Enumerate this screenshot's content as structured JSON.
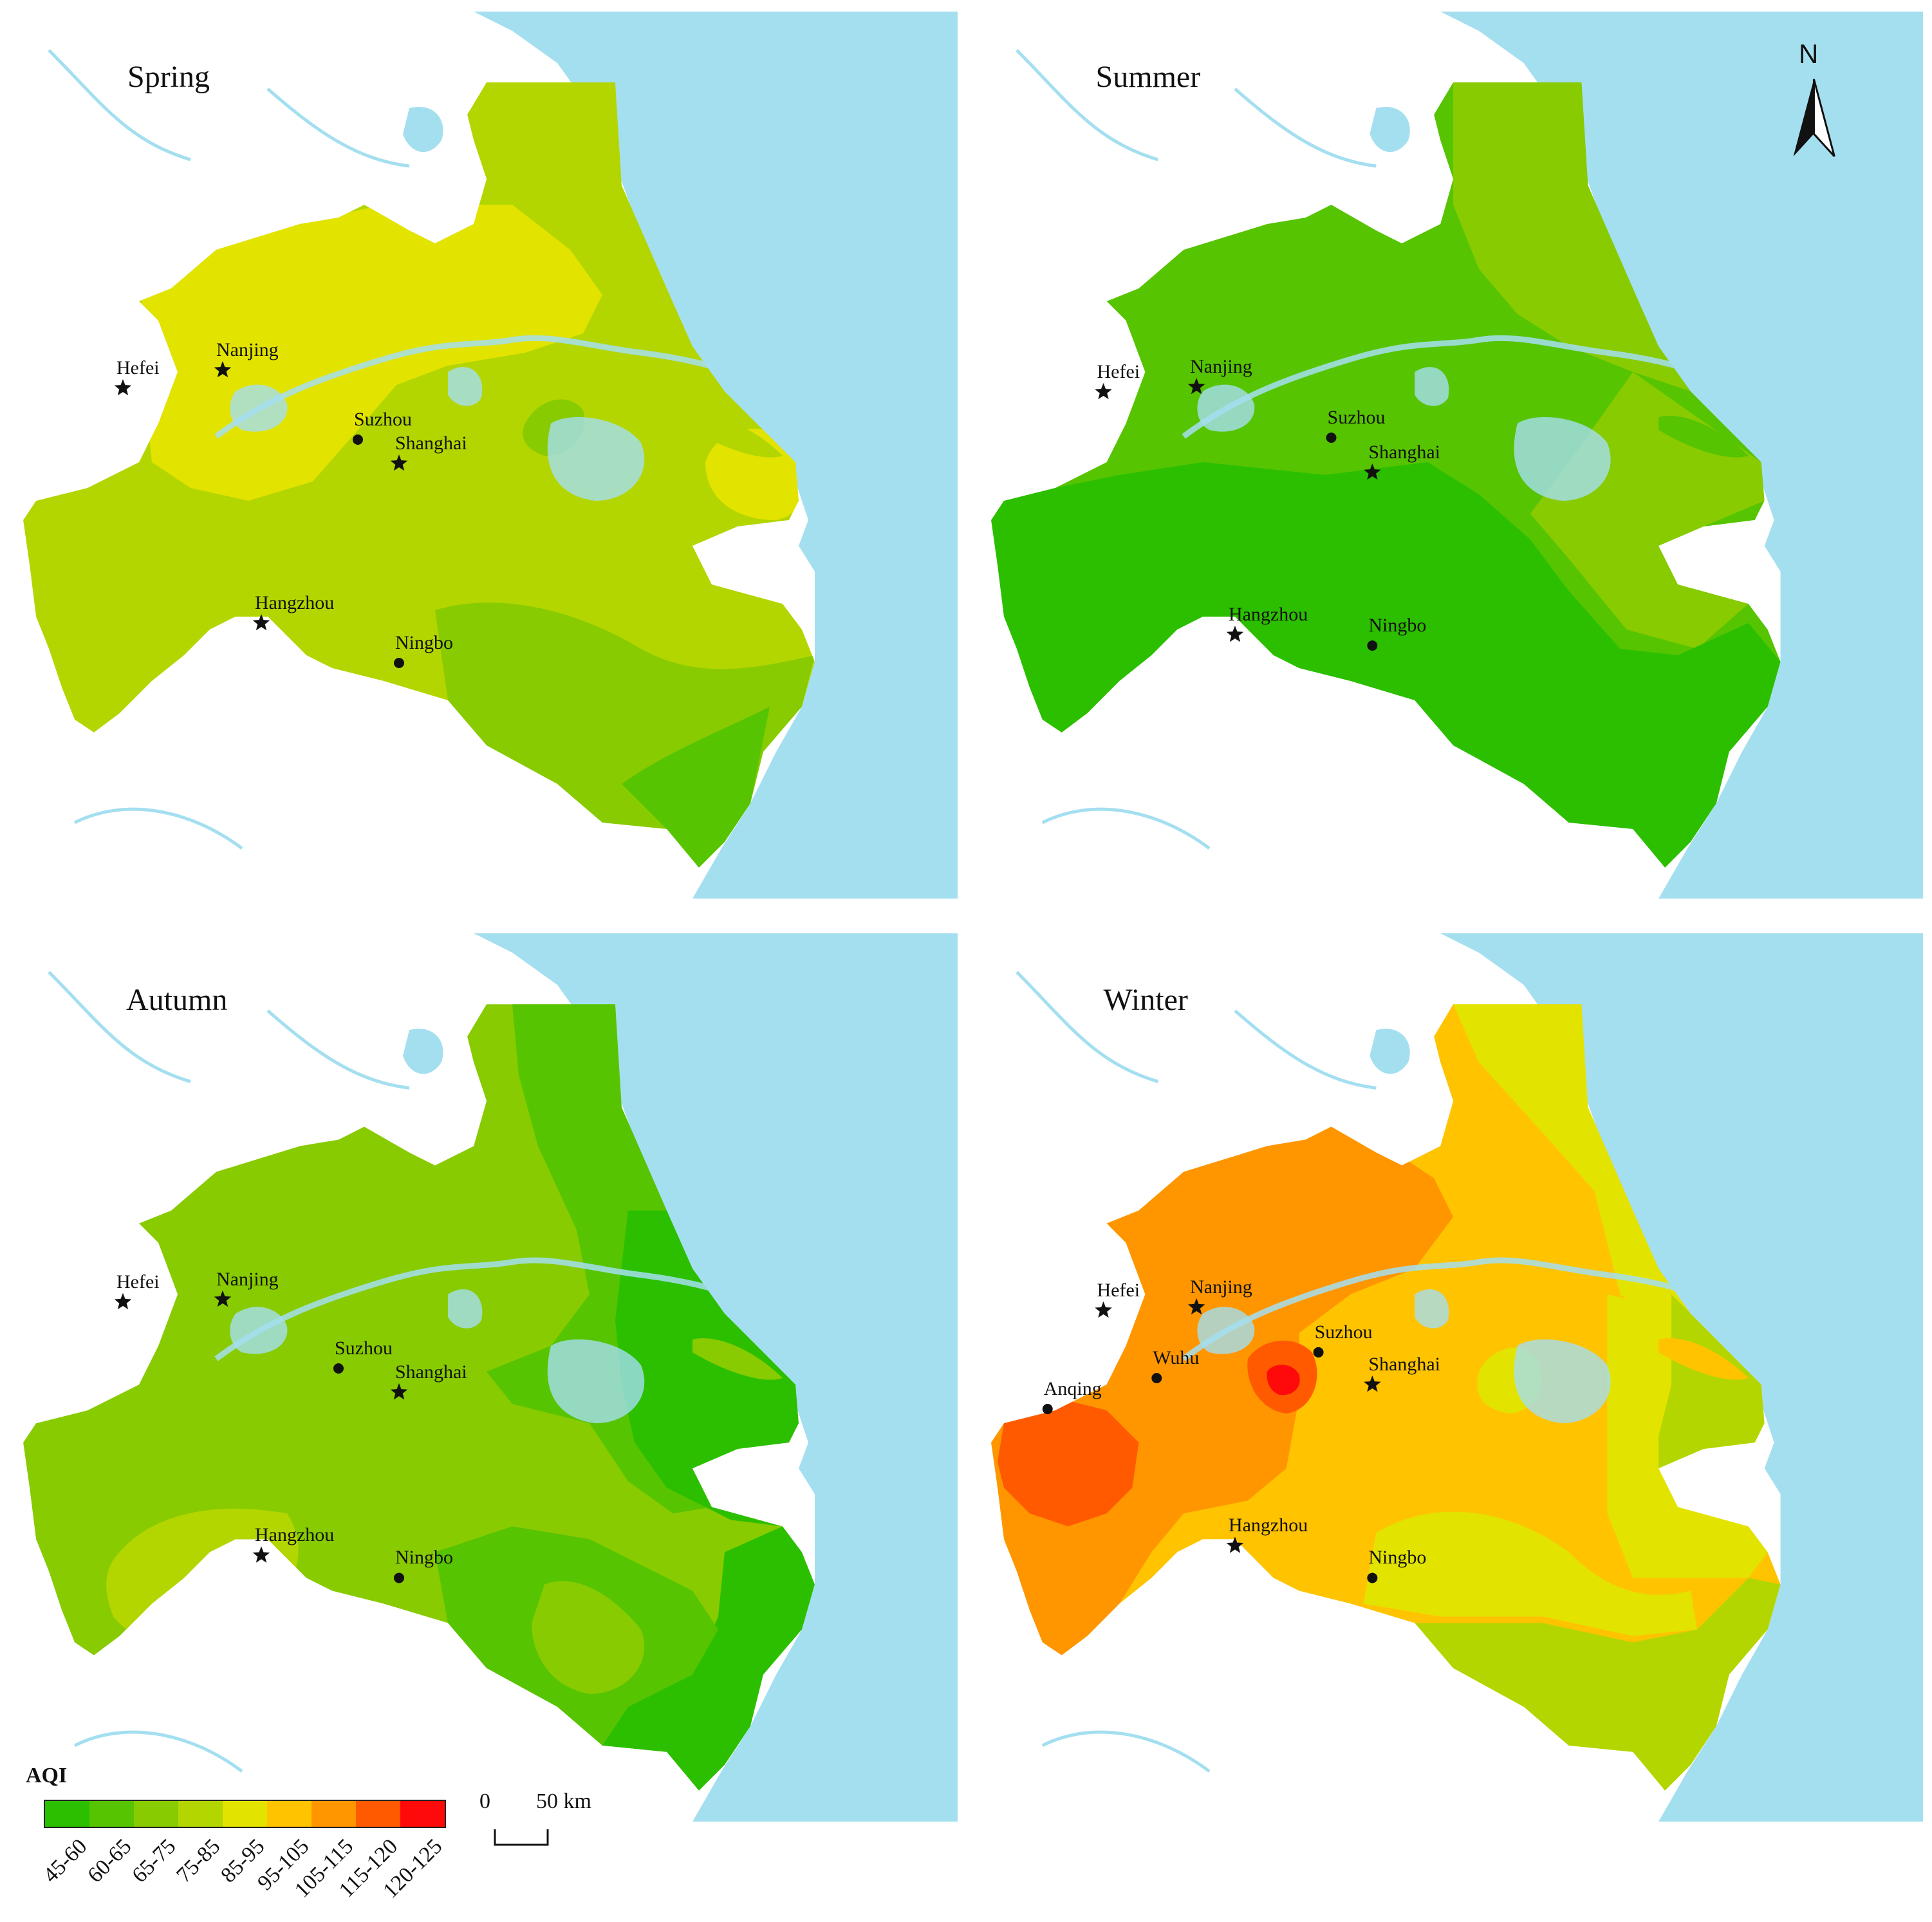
{
  "panels": [
    {
      "season": "Spring",
      "cities": [
        {
          "name": "Hefei",
          "marker": "star"
        },
        {
          "name": "Nanjing",
          "marker": "star"
        },
        {
          "name": "Suzhou",
          "marker": "dot"
        },
        {
          "name": "Shanghai",
          "marker": "star"
        },
        {
          "name": "Hangzhou",
          "marker": "star"
        },
        {
          "name": "Ningbo",
          "marker": "dot"
        }
      ]
    },
    {
      "season": "Summer",
      "cities": [
        {
          "name": "Hefei",
          "marker": "star"
        },
        {
          "name": "Nanjing",
          "marker": "star"
        },
        {
          "name": "Suzhou",
          "marker": "dot"
        },
        {
          "name": "Shanghai",
          "marker": "star"
        },
        {
          "name": "Hangzhou",
          "marker": "star"
        },
        {
          "name": "Ningbo",
          "marker": "dot"
        }
      ]
    },
    {
      "season": "Autumn",
      "cities": [
        {
          "name": "Hefei",
          "marker": "star"
        },
        {
          "name": "Nanjing",
          "marker": "star"
        },
        {
          "name": "Suzhou",
          "marker": "dot"
        },
        {
          "name": "Shanghai",
          "marker": "star"
        },
        {
          "name": "Hangzhou",
          "marker": "star"
        },
        {
          "name": "Ningbo",
          "marker": "dot"
        }
      ]
    },
    {
      "season": "Winter",
      "cities": [
        {
          "name": "Hefei",
          "marker": "star"
        },
        {
          "name": "Nanjing",
          "marker": "star"
        },
        {
          "name": "Suzhou",
          "marker": "dot"
        },
        {
          "name": "Shanghai",
          "marker": "star"
        },
        {
          "name": "Wuhu",
          "marker": "dot"
        },
        {
          "name": "Anqing",
          "marker": "dot"
        },
        {
          "name": "Hangzhou",
          "marker": "star"
        },
        {
          "name": "Ningbo",
          "marker": "dot"
        }
      ]
    }
  ],
  "north_arrow": {
    "label": "N"
  },
  "legend": {
    "title": "AQI",
    "classes": [
      {
        "range": "45-60",
        "color": "#2bbf00"
      },
      {
        "range": "60-65",
        "color": "#56c400"
      },
      {
        "range": "65-75",
        "color": "#87cb00"
      },
      {
        "range": "75-85",
        "color": "#b3d600"
      },
      {
        "range": "85-95",
        "color": "#e3e300"
      },
      {
        "range": "95-105",
        "color": "#ffc300"
      },
      {
        "range": "105-115",
        "color": "#ff9600"
      },
      {
        "range": "115-120",
        "color": "#ff5a00"
      },
      {
        "range": "120-125",
        "color": "#ff0a0a"
      }
    ]
  },
  "scale_bar": {
    "zero": "0",
    "length": "50 km"
  },
  "colors": {
    "sea": "#a4dff0",
    "land": "#ffffff",
    "water": "#a4dff0"
  }
}
